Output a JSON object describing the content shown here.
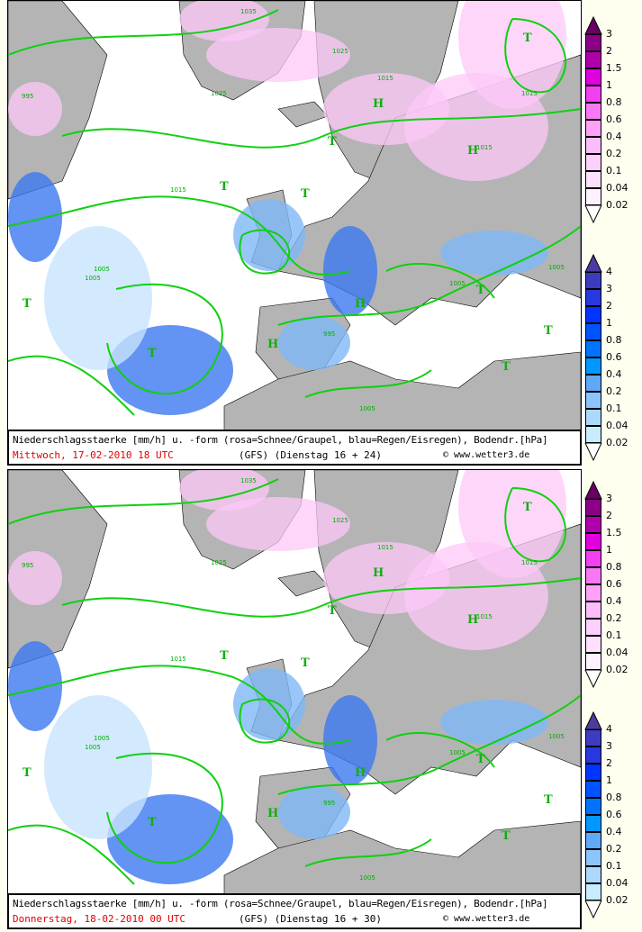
{
  "colors": {
    "land": "#b4b4b4",
    "sea": "#ffffff",
    "isobar": "#10d010",
    "border": "#000000",
    "background": "#fffff0",
    "date_text": "#e00000"
  },
  "panels": [
    {
      "caption_line1": "Niederschlagsstaerke [mm/h] u. -form (rosa=Schnee/Graupel, blau=Regen/Eisregen), Bodendr.[hPa]",
      "date": "Mittwoch, 17-02-2010  18 UTC",
      "model": "(GFS)  (Dienstag 16 + 24)",
      "copyright": "© www.wetter3.de",
      "pressure_labels": [
        "1035",
        "1025",
        "1025",
        "1015",
        "995",
        "1015",
        "1005",
        "995",
        "1005",
        "1015",
        "1005",
        "1005",
        "1015",
        "1005"
      ],
      "centers": [
        "T",
        "H",
        "T",
        "T",
        "H",
        "T",
        "T",
        "H",
        "T",
        "T",
        "H",
        "T",
        "T"
      ]
    },
    {
      "caption_line1": "Niederschlagsstaerke [mm/h] u. -form (rosa=Schnee/Graupel, blau=Regen/Eisregen), Bodendr.[hPa]",
      "date": "Donnerstag, 18-02-2010  00 UTC",
      "model": "(GFS)  (Dienstag 16 + 30)",
      "copyright": "© www.wetter3.de",
      "pressure_labels": [
        "1035",
        "1025",
        "1025",
        "1015",
        "995",
        "1015",
        "1005",
        "995",
        "1005",
        "1015",
        "1005",
        "1005",
        "1015",
        "1005"
      ],
      "centers": [
        "T",
        "H",
        "T",
        "T",
        "H",
        "T",
        "T",
        "H",
        "T",
        "T",
        "H",
        "T",
        "T"
      ]
    }
  ],
  "legend_snow": {
    "labels": [
      "3",
      "2",
      "1.5",
      "1",
      "0.8",
      "0.6",
      "0.4",
      "0.2",
      "0.1",
      "0.04",
      "0.02"
    ],
    "top_color": "#6a0064",
    "colors": [
      "#8c0088",
      "#b000ac",
      "#e000e0",
      "#f040f0",
      "#f878f4",
      "#fca0f8",
      "#fcbcfc",
      "#fcd0fc",
      "#fce0fc",
      "#fff0ff"
    ]
  },
  "legend_rain": {
    "labels": [
      "4",
      "3",
      "2",
      "1",
      "0.8",
      "0.6",
      "0.4",
      "0.2",
      "0.1",
      "0.04",
      "0.02"
    ],
    "top_color": "#4c3ca0",
    "colors": [
      "#3c3cc0",
      "#2838dc",
      "#0034ff",
      "#0054ff",
      "#0074ff",
      "#0098ff",
      "#60a8f8",
      "#8cc4fc",
      "#acd8fc",
      "#c8ecfc"
    ]
  }
}
